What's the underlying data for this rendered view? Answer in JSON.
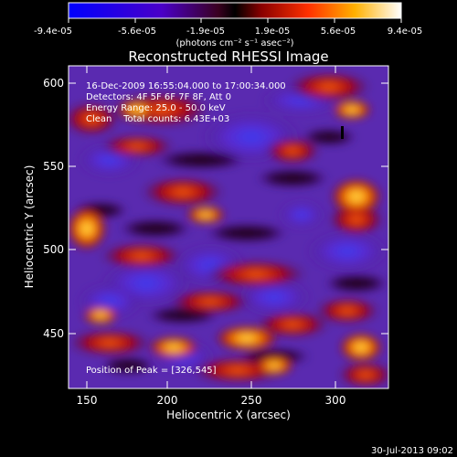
{
  "colorbar": {
    "tick_labels": [
      "-9.4e-05",
      "-5.6e-05",
      "-1.9e-05",
      "1.9e-05",
      "5.6e-05",
      "9.4e-05"
    ],
    "unit_label": "(photons cm⁻² s⁻¹ asec⁻²)",
    "range": [
      -9.4e-05,
      9.4e-05
    ]
  },
  "image": {
    "title": "Reconstructed RHESSI Image",
    "info_lines": [
      "16-Dec-2009 16:55:04.000 to 17:00:34.000",
      "Detectors: 4F 5F 6F 7F 8F, Att 0",
      "Energy Range: 25.0 - 50.0 keV",
      "Clean    Total counts: 6.43E+03"
    ],
    "peak_label": "Position of Peak = [326,545]",
    "xlabel": "Heliocentric X (arcsec)",
    "ylabel": "Heliocentric Y (arcsec)",
    "x_ticks": [
      "150",
      "200",
      "250",
      "300"
    ],
    "y_ticks": [
      "600",
      "550",
      "500",
      "450"
    ],
    "xlim": [
      140,
      330
    ],
    "ylim": [
      415,
      610
    ]
  },
  "footer": {
    "date": "30-Jul-2013 09:02"
  }
}
